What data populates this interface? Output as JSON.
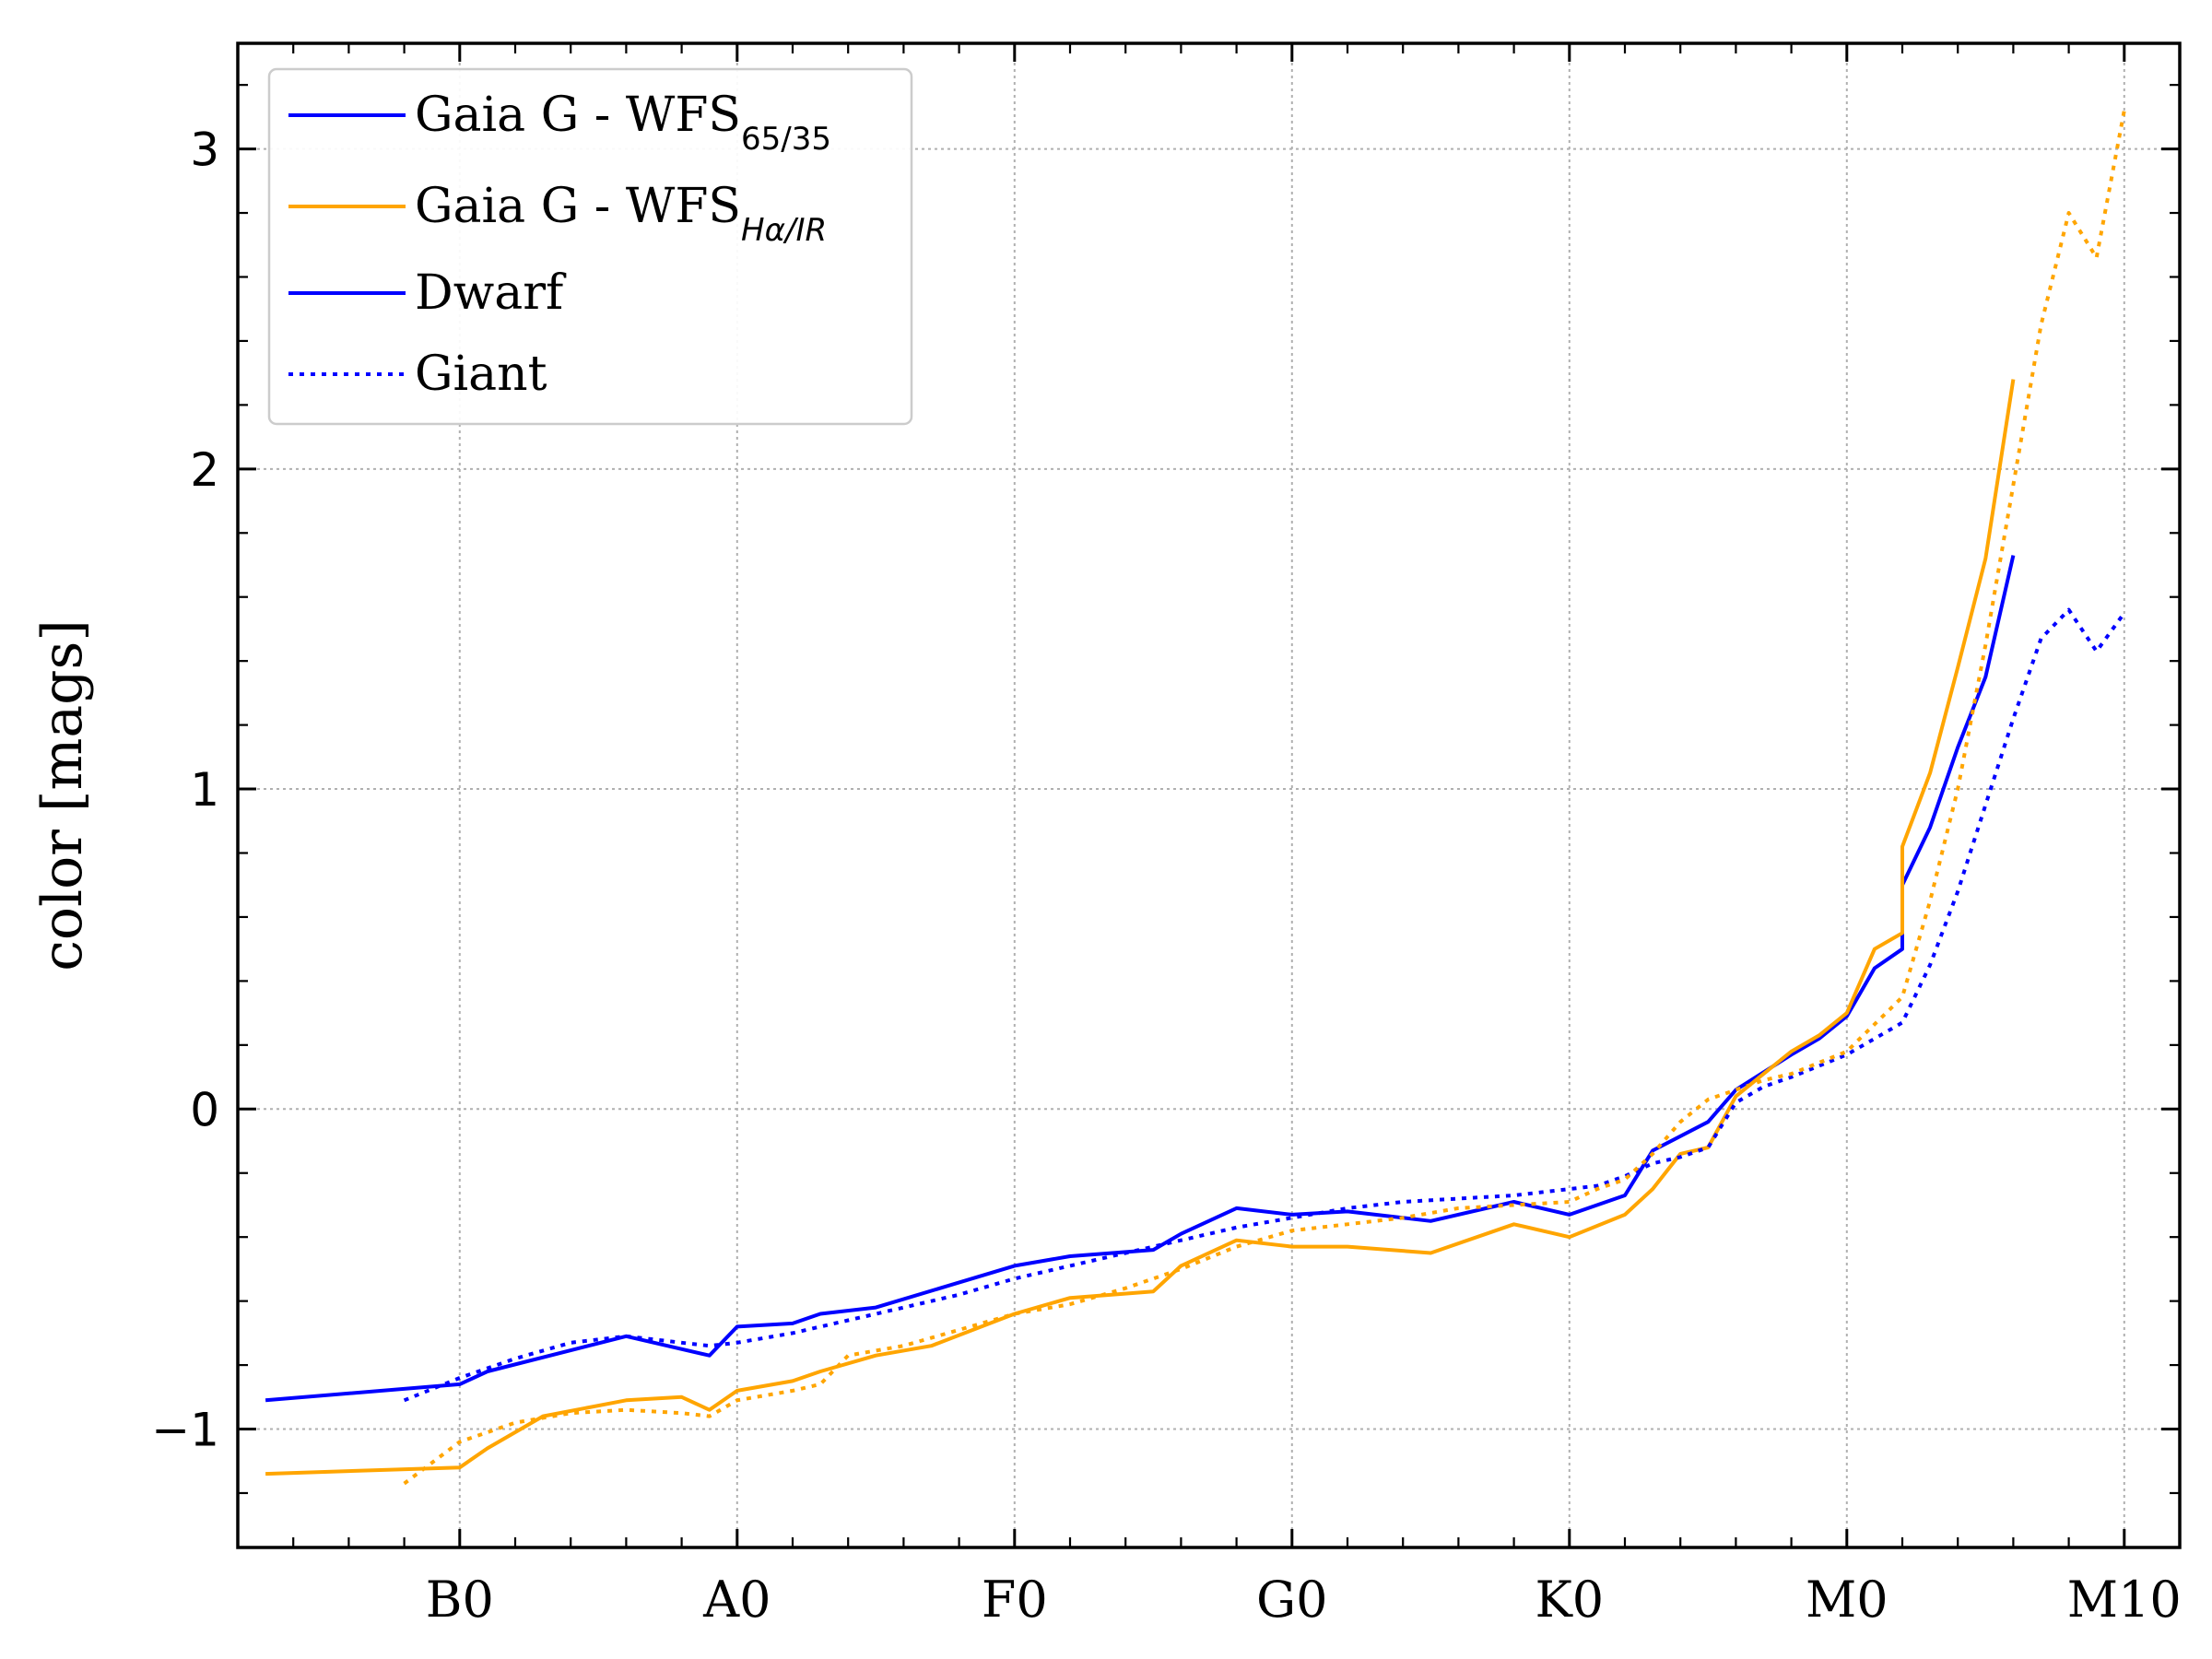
{
  "chart_data": {
    "type": "line",
    "title": "",
    "xlabel": "",
    "ylabel": "color [mags]",
    "x_ticks": [
      {
        "label": "B0",
        "x": 10
      },
      {
        "label": "A0",
        "x": 20
      },
      {
        "label": "F0",
        "x": 30
      },
      {
        "label": "G0",
        "x": 40
      },
      {
        "label": "K0",
        "x": 50
      },
      {
        "label": "M0",
        "x": 60
      },
      {
        "label": "M10",
        "x": 70
      }
    ],
    "y_ticks": [
      {
        "label": "−1",
        "y": -1
      },
      {
        "label": "0",
        "y": 0
      },
      {
        "label": "1",
        "y": 1
      },
      {
        "label": "2",
        "y": 2
      },
      {
        "label": "3",
        "y": 3
      }
    ],
    "xlim": [
      2.0,
      72.0
    ],
    "ylim": [
      -1.37,
      3.33
    ],
    "grid": true,
    "legend_position": "top-left",
    "legend": [
      {
        "main": "Gaia G - WFS",
        "sub": "65/35",
        "color": "#0000ff",
        "style": "solid"
      },
      {
        "main": "Gaia G - WFS",
        "sub": "Hα/IR",
        "color": "#ffa500",
        "style": "solid"
      },
      {
        "main": "Dwarf",
        "sub": "",
        "color": "#0000ff",
        "style": "solid"
      },
      {
        "main": "Giant",
        "sub": "",
        "color": "#0000ff",
        "style": "dotted"
      }
    ],
    "series": [
      {
        "color": "#0000ff",
        "style": "solid",
        "x": [
          3,
          10,
          11,
          16,
          19,
          20,
          22,
          23,
          25,
          30,
          32,
          35,
          36,
          38,
          40,
          42,
          45,
          48,
          50,
          52,
          53,
          55,
          56,
          58,
          59,
          60,
          61,
          62,
          62,
          63,
          64,
          65,
          66
        ],
        "y": [
          -0.91,
          -0.86,
          -0.82,
          -0.71,
          -0.77,
          -0.68,
          -0.67,
          -0.64,
          -0.62,
          -0.49,
          -0.46,
          -0.44,
          -0.39,
          -0.31,
          -0.33,
          -0.32,
          -0.35,
          -0.29,
          -0.33,
          -0.27,
          -0.13,
          -0.04,
          0.06,
          0.17,
          0.22,
          0.29,
          0.44,
          0.5,
          0.7,
          0.88,
          1.13,
          1.35,
          1.73
        ]
      },
      {
        "color": "#ffa500",
        "style": "solid",
        "x": [
          3,
          10,
          11,
          13,
          16,
          18,
          19,
          20,
          22,
          23,
          25,
          27,
          30,
          32,
          35,
          36,
          38,
          40,
          42,
          45,
          48,
          50,
          52,
          53,
          54,
          55,
          56,
          58,
          59,
          60,
          61,
          62,
          62,
          63,
          64,
          65,
          66
        ],
        "y": [
          -1.14,
          -1.12,
          -1.06,
          -0.96,
          -0.91,
          -0.9,
          -0.94,
          -0.88,
          -0.85,
          -0.82,
          -0.77,
          -0.74,
          -0.64,
          -0.59,
          -0.57,
          -0.49,
          -0.41,
          -0.43,
          -0.43,
          -0.45,
          -0.36,
          -0.4,
          -0.33,
          -0.25,
          -0.14,
          -0.12,
          0.04,
          0.18,
          0.23,
          0.3,
          0.5,
          0.55,
          0.82,
          1.05,
          1.38,
          1.72,
          2.28
        ]
      },
      {
        "color": "#0000ff",
        "style": "dotted",
        "x": [
          8,
          10,
          12,
          14,
          16,
          18,
          19,
          20,
          22,
          24,
          26,
          28,
          30,
          32,
          34,
          36,
          38,
          40,
          42,
          44,
          46,
          48,
          50,
          51,
          52,
          53,
          54,
          55,
          56,
          57,
          58,
          60,
          62,
          63,
          64,
          65,
          66,
          67,
          68,
          69,
          70
        ],
        "y": [
          -0.91,
          -0.84,
          -0.78,
          -0.73,
          -0.71,
          -0.73,
          -0.74,
          -0.73,
          -0.7,
          -0.66,
          -0.62,
          -0.58,
          -0.53,
          -0.49,
          -0.45,
          -0.41,
          -0.37,
          -0.34,
          -0.31,
          -0.29,
          -0.28,
          -0.27,
          -0.25,
          -0.24,
          -0.21,
          -0.17,
          -0.15,
          -0.12,
          0.02,
          0.07,
          0.1,
          0.17,
          0.27,
          0.45,
          0.68,
          0.95,
          1.22,
          1.47,
          1.56,
          1.43,
          1.55
        ]
      },
      {
        "color": "#ffa500",
        "style": "dotted",
        "x": [
          8,
          10,
          12,
          14,
          16,
          18,
          19,
          20,
          22,
          23,
          24,
          26,
          28,
          30,
          32,
          34,
          36,
          38,
          40,
          42,
          44,
          46,
          48,
          50,
          51,
          52,
          53,
          54,
          55,
          56,
          57,
          58,
          60,
          62,
          63,
          64,
          65,
          66,
          67,
          68,
          69,
          70
        ],
        "y": [
          -1.17,
          -1.04,
          -0.98,
          -0.95,
          -0.94,
          -0.95,
          -0.96,
          -0.91,
          -0.88,
          -0.86,
          -0.77,
          -0.74,
          -0.69,
          -0.64,
          -0.61,
          -0.56,
          -0.5,
          -0.43,
          -0.38,
          -0.36,
          -0.34,
          -0.31,
          -0.3,
          -0.29,
          -0.25,
          -0.22,
          -0.14,
          -0.04,
          0.03,
          0.06,
          0.09,
          0.11,
          0.18,
          0.35,
          0.65,
          1.0,
          1.45,
          1.95,
          2.45,
          2.8,
          2.66,
          3.12
        ]
      }
    ]
  }
}
